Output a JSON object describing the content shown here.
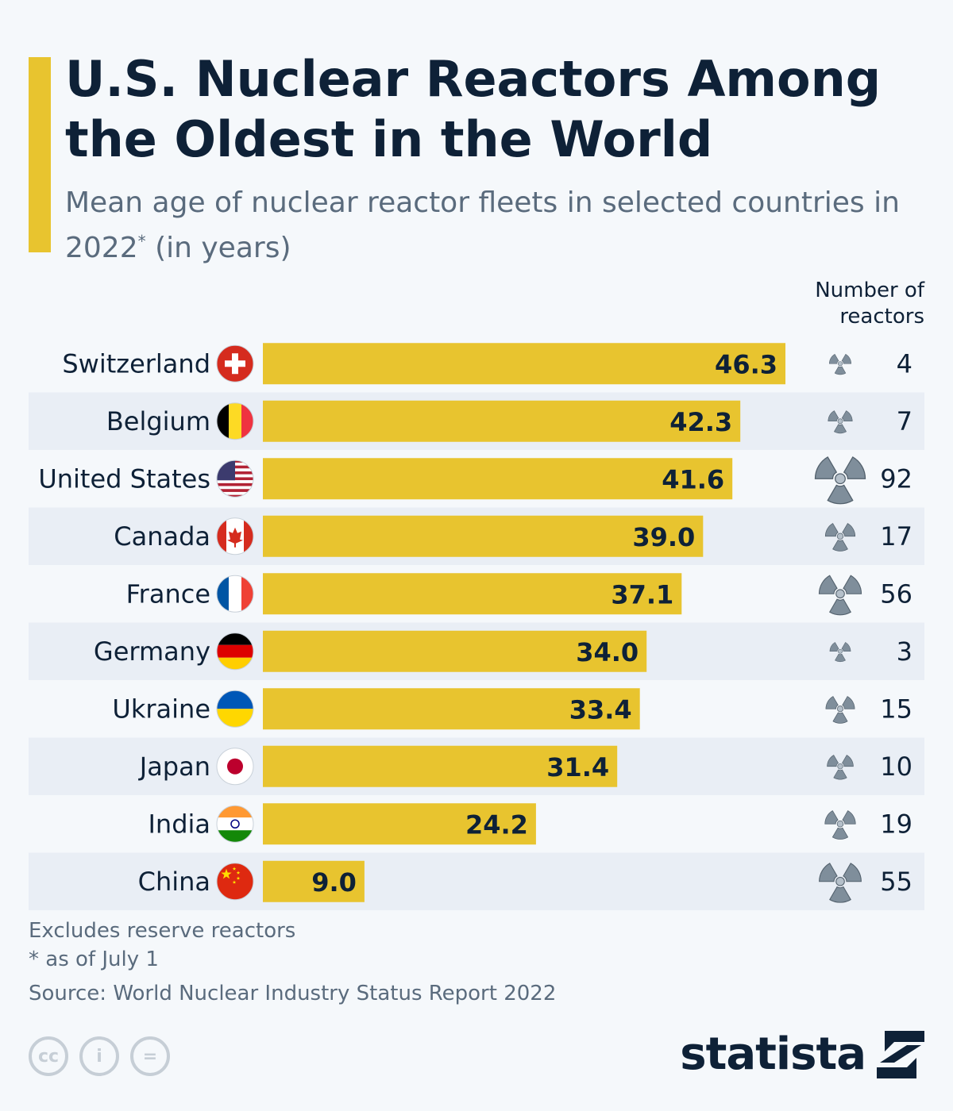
{
  "header": {
    "title": "U.S. Nuclear Reactors Among the Oldest in the World",
    "subtitle_main": "Mean age of nuclear reactor fleets in selected countries in 2022",
    "subtitle_mark": "*",
    "subtitle_unit": " (in years)",
    "accent_color": "#e8c42f"
  },
  "column_header": "Number of reactors",
  "chart_data": {
    "type": "bar",
    "orientation": "horizontal",
    "categories": [
      "Switzerland",
      "Belgium",
      "United States",
      "Canada",
      "France",
      "Germany",
      "Ukraine",
      "Japan",
      "India",
      "China"
    ],
    "values": [
      46.3,
      42.3,
      41.6,
      39.0,
      37.1,
      34.0,
      33.4,
      31.4,
      24.2,
      9.0
    ],
    "value_labels": [
      "46.3",
      "42.3",
      "41.6",
      "39.0",
      "37.1",
      "34.0",
      "33.4",
      "31.4",
      "24.2",
      "9.0"
    ],
    "reactors": [
      4,
      7,
      92,
      17,
      56,
      3,
      15,
      10,
      19,
      55
    ],
    "xlim": [
      0,
      46.3
    ],
    "bar_color": "#e8c42f",
    "icon": "radiation-icon",
    "flag_icons": [
      "swiss-flag-icon",
      "belgian-flag-icon",
      "us-flag-icon",
      "canadian-flag-icon",
      "french-flag-icon",
      "german-flag-icon",
      "ukrainian-flag-icon",
      "japanese-flag-icon",
      "indian-flag-icon",
      "chinese-flag-icon"
    ]
  },
  "footer": {
    "note1": "Excludes reserve reactors",
    "note2": "* as of July 1",
    "source": "Source: World Nuclear Industry Status Report 2022",
    "brand": "statista",
    "cc_icons": [
      "cc-icon",
      "by-icon",
      "nd-icon"
    ],
    "cc_labels": [
      "cc",
      "i",
      "="
    ]
  }
}
